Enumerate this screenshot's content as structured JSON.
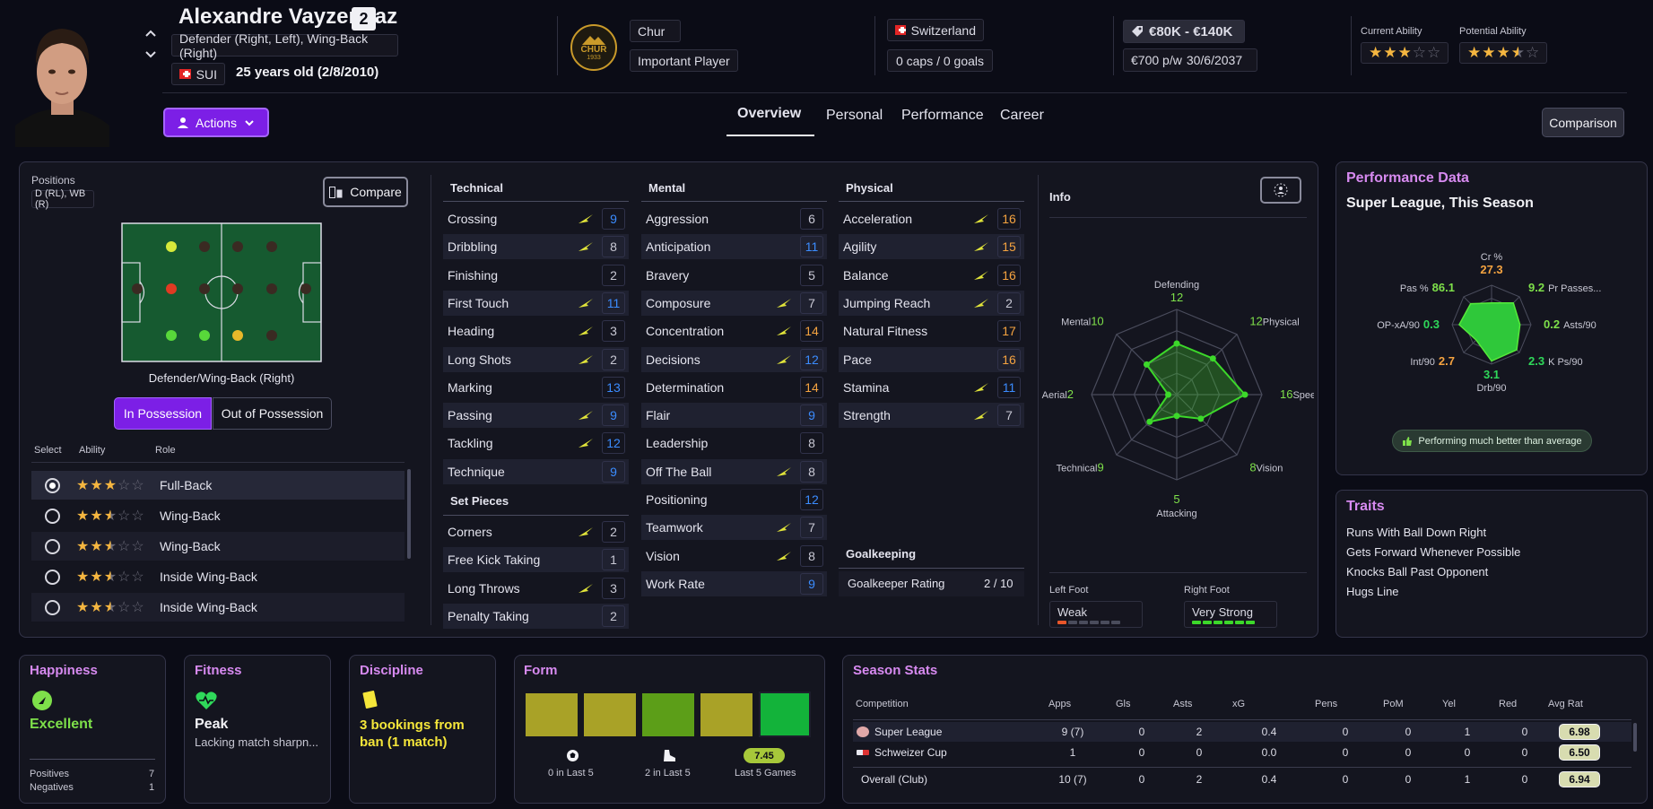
{
  "player": {
    "name": "Alexandre Vayzendaz",
    "number": "2",
    "positions_text": "Defender (Right, Left), Wing-Back (Right)",
    "nation": "SUI",
    "age_text": "25 years old (2/8/2010)",
    "club": "Chur",
    "club_badge_text": "CHUR",
    "club_badge_year": "1933",
    "squad_status": "Important Player",
    "country": "Switzerland",
    "caps": "0 caps / 0 goals",
    "value": "€80K - €140K",
    "wage": "€700 p/w",
    "contract": "30/6/2037",
    "current_ability_label": "Current Ability",
    "potential_ability_label": "Potential Ability",
    "current_ability_stars": 3,
    "potential_ability_stars": 3.5
  },
  "nav": {
    "actions_label": "Actions",
    "tabs": [
      "Overview",
      "Personal",
      "Performance",
      "Career"
    ],
    "active_tab": "Overview",
    "comparison_label": "Comparison"
  },
  "positions_panel": {
    "label": "Positions",
    "value": "D (RL), WB (R)",
    "compare_label": "Compare",
    "role_title": "Defender/Wing-Back (Right)",
    "in_possession": "In Possession",
    "out_possession": "Out of Possession",
    "headers": [
      "Select",
      "Ability",
      "Role"
    ],
    "roles": [
      {
        "name": "Full-Back",
        "stars": 3,
        "selected": true
      },
      {
        "name": "Wing-Back",
        "stars": 2.5,
        "selected": false
      },
      {
        "name": "Wing-Back",
        "stars": 2.5,
        "selected": false
      },
      {
        "name": "Inside Wing-Back",
        "stars": 2.5,
        "selected": false
      },
      {
        "name": "Inside Wing-Back",
        "stars": 2.5,
        "selected": false
      }
    ]
  },
  "attributes": {
    "technical_title": "Technical",
    "technical": [
      {
        "name": "Crossing",
        "value": "9",
        "arrow": true
      },
      {
        "name": "Dribbling",
        "value": "8",
        "arrow": true
      },
      {
        "name": "Finishing",
        "value": "2",
        "arrow": false
      },
      {
        "name": "First Touch",
        "value": "11",
        "arrow": true
      },
      {
        "name": "Heading",
        "value": "3",
        "arrow": true
      },
      {
        "name": "Long Shots",
        "value": "2",
        "arrow": true
      },
      {
        "name": "Marking",
        "value": "13",
        "arrow": false
      },
      {
        "name": "Passing",
        "value": "9",
        "arrow": true
      },
      {
        "name": "Tackling",
        "value": "12",
        "arrow": true
      },
      {
        "name": "Technique",
        "value": "9",
        "arrow": false
      }
    ],
    "setpieces_title": "Set Pieces",
    "setpieces": [
      {
        "name": "Corners",
        "value": "2",
        "arrow": true
      },
      {
        "name": "Free Kick Taking",
        "value": "1",
        "arrow": false
      },
      {
        "name": "Long Throws",
        "value": "3",
        "arrow": true
      },
      {
        "name": "Penalty Taking",
        "value": "2",
        "arrow": false
      }
    ],
    "mental_title": "Mental",
    "mental": [
      {
        "name": "Aggression",
        "value": "6",
        "arrow": false
      },
      {
        "name": "Anticipation",
        "value": "11",
        "arrow": false
      },
      {
        "name": "Bravery",
        "value": "5",
        "arrow": false
      },
      {
        "name": "Composure",
        "value": "7",
        "arrow": true
      },
      {
        "name": "Concentration",
        "value": "14",
        "arrow": true
      },
      {
        "name": "Decisions",
        "value": "12",
        "arrow": true
      },
      {
        "name": "Determination",
        "value": "14",
        "arrow": false
      },
      {
        "name": "Flair",
        "value": "9",
        "arrow": false
      },
      {
        "name": "Leadership",
        "value": "8",
        "arrow": false
      },
      {
        "name": "Off The Ball",
        "value": "8",
        "arrow": true
      },
      {
        "name": "Positioning",
        "value": "12",
        "arrow": false
      },
      {
        "name": "Teamwork",
        "value": "7",
        "arrow": true
      },
      {
        "name": "Vision",
        "value": "8",
        "arrow": true
      },
      {
        "name": "Work Rate",
        "value": "9",
        "arrow": false
      }
    ],
    "physical_title": "Physical",
    "physical": [
      {
        "name": "Acceleration",
        "value": "16",
        "arrow": true
      },
      {
        "name": "Agility",
        "value": "15",
        "arrow": true
      },
      {
        "name": "Balance",
        "value": "16",
        "arrow": true
      },
      {
        "name": "Jumping Reach",
        "value": "2",
        "arrow": true
      },
      {
        "name": "Natural Fitness",
        "value": "17",
        "arrow": false
      },
      {
        "name": "Pace",
        "value": "16",
        "arrow": false
      },
      {
        "name": "Stamina",
        "value": "11",
        "arrow": true
      },
      {
        "name": "Strength",
        "value": "7",
        "arrow": true
      }
    ],
    "goalkeeping_title": "Goalkeeping",
    "gk_rating_label": "Goalkeeper Rating",
    "gk_rating_value": "2 / 10"
  },
  "info": {
    "title": "Info",
    "radar": [
      {
        "label": "Defending",
        "value": "12"
      },
      {
        "label": "Physical",
        "value": "12"
      },
      {
        "label": "Speed",
        "value": "16"
      },
      {
        "label": "Vision",
        "value": "8"
      },
      {
        "label": "Attacking",
        "value": "5"
      },
      {
        "label": "Technical",
        "value": "9"
      },
      {
        "label": "Aerial",
        "value": "2"
      },
      {
        "label": "Mental",
        "value": "10"
      }
    ],
    "radar_max": 20,
    "left_foot_label": "Left Foot",
    "left_foot_value": "Weak",
    "left_foot_level": 1,
    "right_foot_label": "Right Foot",
    "right_foot_value": "Very Strong",
    "right_foot_level": 6
  },
  "performance": {
    "title": "Performance Data",
    "subtitle": "Super League, This Season",
    "metrics": [
      {
        "label": "Cr %",
        "value": "27.3",
        "color": "#f5a340"
      },
      {
        "label": "Pr Passes...",
        "value": "9.2",
        "color": "#7ee04a"
      },
      {
        "label": "Asts/90",
        "value": "0.2",
        "color": "#7ee04a"
      },
      {
        "label": "K Ps/90",
        "value": "2.3",
        "color": "#2fd85a"
      },
      {
        "label": "Drb/90",
        "value": "3.1",
        "color": "#2fd85a"
      },
      {
        "label": "Int/90",
        "value": "2.7",
        "color": "#f5a340"
      },
      {
        "label": "OP-xA/90",
        "value": "0.3",
        "color": "#2fd85a"
      },
      {
        "label": "Pas %",
        "value": "86.1",
        "color": "#7ee04a"
      }
    ],
    "metric_levels": [
      0.55,
      0.78,
      0.72,
      0.9,
      0.92,
      0.55,
      0.82,
      0.75
    ],
    "badge": "Performing much better than average"
  },
  "traits": {
    "title": "Traits",
    "items": [
      "Runs With Ball Down Right",
      "Gets Forward Whenever Possible",
      "Knocks Ball Past Opponent",
      "Hugs Line"
    ]
  },
  "happiness": {
    "title": "Happiness",
    "value": "Excellent",
    "positives_label": "Positives",
    "positives": "7",
    "negatives_label": "Negatives",
    "negatives": "1"
  },
  "fitness": {
    "title": "Fitness",
    "value": "Peak",
    "note": "Lacking match sharpn..."
  },
  "discipline": {
    "title": "Discipline",
    "value": "3 bookings from ban (1 match)"
  },
  "form": {
    "title": "Form",
    "squares": [
      "#a9a227",
      "#a9a227",
      "#5c9e18",
      "#a9a227",
      "#13b33a"
    ],
    "goals_text": "0 in Last 5",
    "assists_text": "2 in Last 5",
    "rating": "7.45",
    "rating_label": "Last 5 Games"
  },
  "season_stats": {
    "title": "Season Stats",
    "headers": [
      "Competition",
      "Apps",
      "Gls",
      "Asts",
      "xG",
      "Pens",
      "PoM",
      "Yel",
      "Red",
      "Avg Rat"
    ],
    "rows": [
      {
        "competition": "Super League",
        "apps": "9 (7)",
        "gls": "0",
        "asts": "2",
        "xg": "0.4",
        "pens": "0",
        "pom": "0",
        "yel": "1",
        "red": "0",
        "avg": "6.98"
      },
      {
        "competition": "Schweizer Cup",
        "apps": "1",
        "gls": "0",
        "asts": "0",
        "xg": "0.0",
        "pens": "0",
        "pom": "0",
        "yel": "0",
        "red": "0",
        "avg": "6.50"
      }
    ],
    "total": {
      "competition": "Overall (Club)",
      "apps": "10 (7)",
      "gls": "0",
      "asts": "2",
      "xg": "0.4",
      "pens": "0",
      "pom": "0",
      "yel": "1",
      "red": "0",
      "avg": "6.94"
    }
  }
}
